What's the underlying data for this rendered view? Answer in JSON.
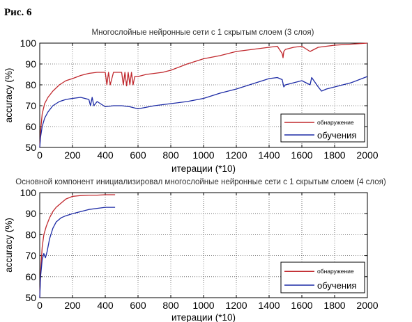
{
  "figure_label": "Рис. 6",
  "colors": {
    "red": "#c0282d",
    "blue": "#1c2aa5",
    "grid": "#555555",
    "axis": "#000000"
  },
  "chart_data": [
    {
      "type": "line",
      "title": "Многослойные нейронные сети с 1 скрытым слоем (3 слоя)",
      "xlabel": "итерации (*10)",
      "ylabel": "accuracy (%)",
      "xlim": [
        0,
        2000
      ],
      "ylim": [
        50,
        100
      ],
      "xticks": [
        0,
        200,
        400,
        600,
        800,
        1000,
        1200,
        1400,
        1600,
        1800,
        2000
      ],
      "yticks": [
        50,
        60,
        70,
        80,
        90,
        100
      ],
      "grid": true,
      "legend": "bottom-right",
      "series": [
        {
          "name": "обнаружение",
          "color": "red",
          "x": [
            0,
            5,
            15,
            30,
            50,
            80,
            120,
            160,
            200,
            250,
            300,
            350,
            400,
            410,
            420,
            430,
            450,
            500,
            510,
            520,
            530,
            540,
            550,
            560,
            570,
            580,
            600,
            650,
            700,
            750,
            800,
            900,
            1000,
            1100,
            1200,
            1300,
            1400,
            1450,
            1480,
            1485,
            1490,
            1500,
            1550,
            1600,
            1650,
            1700,
            1750,
            1800,
            1900,
            2000
          ],
          "y": [
            50,
            58,
            66,
            71,
            74,
            77,
            80,
            82,
            83,
            84.5,
            85.5,
            86,
            86,
            80,
            86,
            80,
            86,
            86,
            80,
            86,
            79.5,
            86,
            80,
            86,
            80,
            84,
            84,
            85,
            85.5,
            86,
            87,
            90,
            92.5,
            94,
            96,
            97,
            98,
            98.5,
            95,
            93,
            96,
            97,
            98,
            98.5,
            96,
            98,
            98.5,
            99,
            99.5,
            100
          ]
        },
        {
          "name": "обучения",
          "color": "blue",
          "x": [
            0,
            5,
            15,
            30,
            50,
            80,
            120,
            160,
            200,
            250,
            300,
            310,
            320,
            330,
            350,
            400,
            450,
            500,
            550,
            600,
            700,
            800,
            900,
            1000,
            1100,
            1200,
            1300,
            1400,
            1450,
            1480,
            1490,
            1500,
            1550,
            1600,
            1650,
            1660,
            1700,
            1720,
            1750,
            1800,
            1900,
            2000
          ],
          "y": [
            50,
            55,
            60,
            64,
            67,
            70,
            72,
            73,
            73.5,
            74,
            73,
            70,
            74,
            70,
            72,
            69.5,
            70,
            70,
            69.5,
            68.5,
            70,
            71,
            72,
            73.5,
            76,
            78,
            80.5,
            83,
            83.5,
            82.5,
            79,
            80,
            81,
            82,
            80,
            83.5,
            79,
            77,
            78,
            79,
            81,
            84
          ]
        }
      ]
    },
    {
      "type": "line",
      "title": "Основной компонент инициализировал многослойные нейронные сети с 1 скрытым слоем (4 слоя)",
      "xlabel": "итерации (*10)",
      "ylabel": "accuracy (%)",
      "xlim": [
        0,
        2000
      ],
      "ylim": [
        50,
        100
      ],
      "xticks": [
        0,
        200,
        400,
        600,
        800,
        1000,
        1200,
        1400,
        1600,
        1800,
        2000
      ],
      "yticks": [
        50,
        60,
        70,
        80,
        90,
        100
      ],
      "grid": true,
      "legend": "bottom-right",
      "series": [
        {
          "name": "обнаружение",
          "color": "red",
          "x": [
            0,
            5,
            15,
            25,
            40,
            60,
            80,
            100,
            130,
            160,
            200,
            250,
            300,
            350,
            400,
            460
          ],
          "y": [
            50,
            62,
            74,
            80,
            84,
            88,
            91,
            93,
            95,
            97,
            98.2,
            98.6,
            98.8,
            98.8,
            99,
            99
          ]
        },
        {
          "name": "обучения",
          "color": "blue",
          "x": [
            0,
            5,
            15,
            25,
            35,
            45,
            60,
            80,
            100,
            130,
            160,
            200,
            250,
            300,
            350,
            400,
            460
          ],
          "y": [
            50,
            60,
            68,
            71,
            69,
            72,
            78,
            83,
            86,
            88,
            89,
            90,
            91,
            92,
            92.5,
            93,
            93
          ]
        }
      ]
    }
  ]
}
